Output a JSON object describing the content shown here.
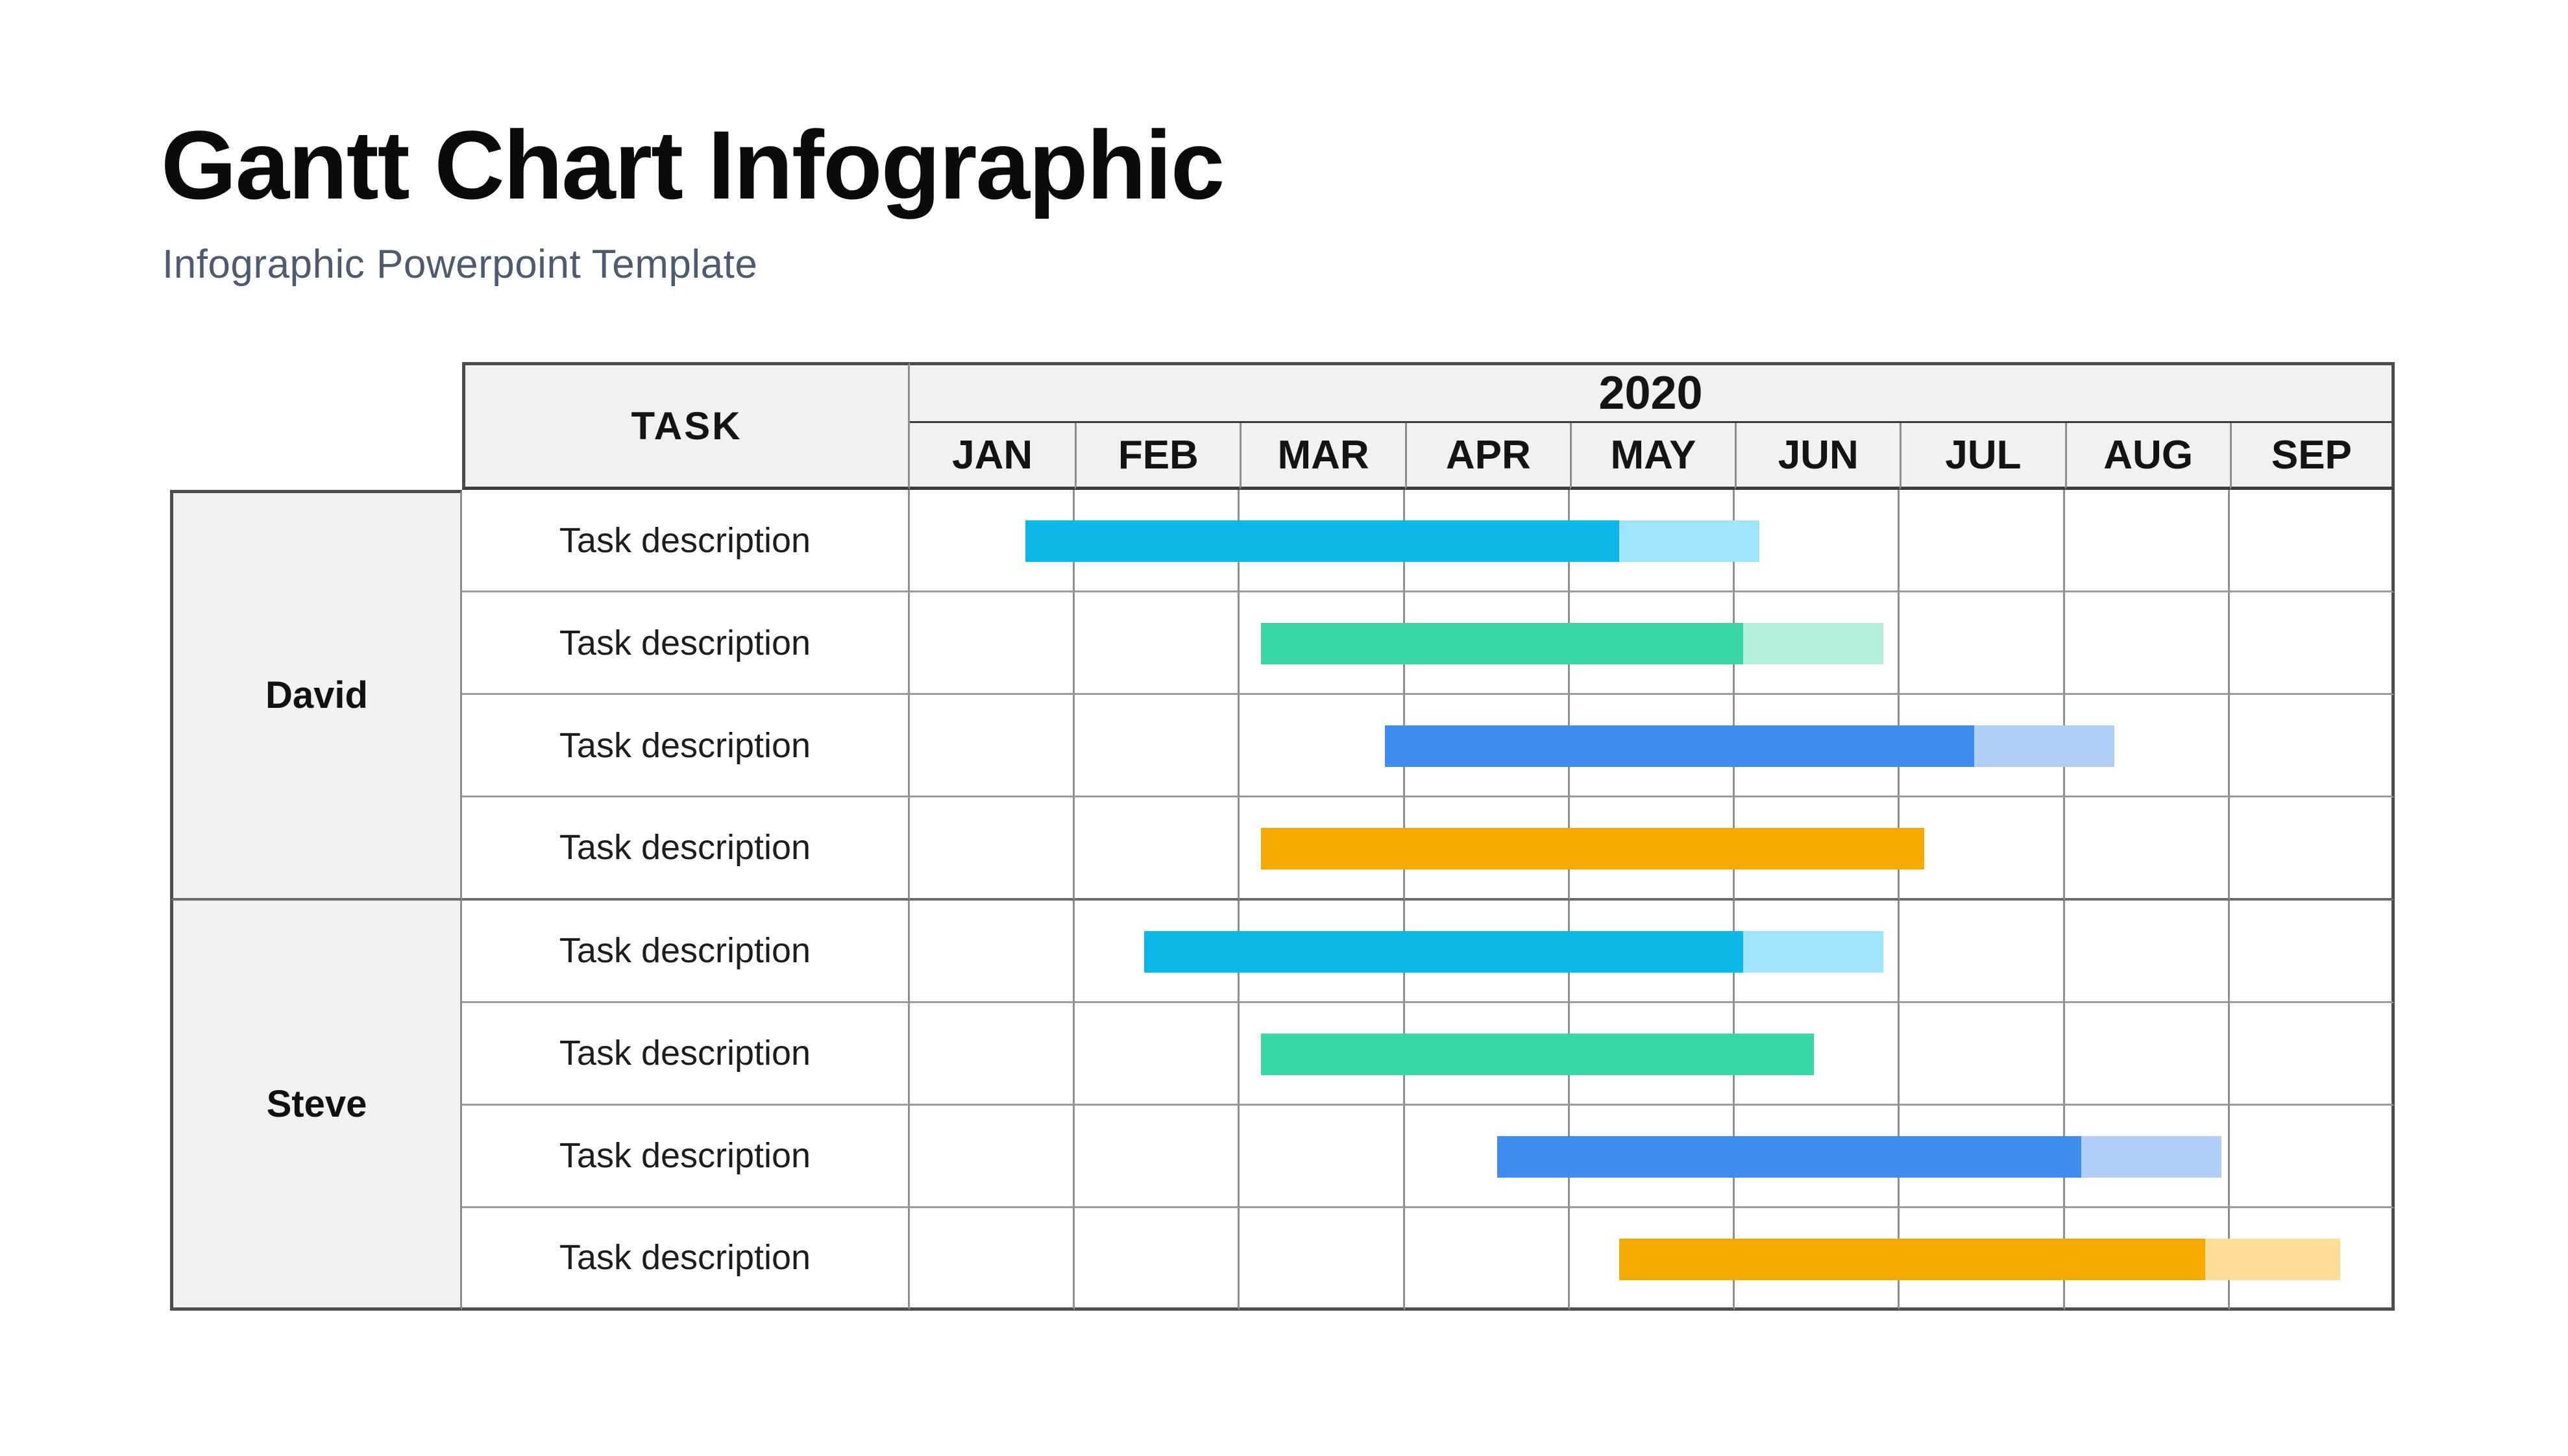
{
  "page": {
    "title": "Gantt Chart Infographic",
    "subtitle": "Infographic Powerpoint Template"
  },
  "table": {
    "task_header": "TASK",
    "year_header": "2020",
    "months": [
      "JAN",
      "FEB",
      "MAR",
      "APR",
      "MAY",
      "JUN",
      "JUL",
      "AUG",
      "SEP"
    ],
    "groups": [
      {
        "name": "David",
        "tasks": [
          {
            "label": "Task description",
            "color": "cyan",
            "start_month": 0.7,
            "solid_end_month": 4.3,
            "faded_end_month": 5.15
          },
          {
            "label": "Task description",
            "color": "green",
            "start_month": 2.13,
            "solid_end_month": 5.05,
            "faded_end_month": 5.9
          },
          {
            "label": "Task description",
            "color": "blue",
            "start_month": 2.88,
            "solid_end_month": 6.45,
            "faded_end_month": 7.3
          },
          {
            "label": "Task description",
            "color": "orange",
            "start_month": 2.13,
            "solid_end_month": 6.15,
            "faded_end_month": null
          }
        ]
      },
      {
        "name": "Steve",
        "tasks": [
          {
            "label": "Task description",
            "color": "cyan",
            "start_month": 1.42,
            "solid_end_month": 5.05,
            "faded_end_month": 5.9
          },
          {
            "label": "Task description",
            "color": "green",
            "start_month": 2.13,
            "solid_end_month": 5.48,
            "faded_end_month": null
          },
          {
            "label": "Task description",
            "color": "blue",
            "start_month": 3.56,
            "solid_end_month": 7.1,
            "faded_end_month": 7.95
          },
          {
            "label": "Task description",
            "color": "orange",
            "start_month": 4.3,
            "solid_end_month": 7.85,
            "faded_end_month": 8.67
          }
        ]
      }
    ]
  },
  "colors": {
    "cyan": "#0bb7e7",
    "cyan_light": "#9fe4fb",
    "green": "#38d7a5",
    "green_light": "#b4eedd",
    "blue": "#3e8cee",
    "blue_light": "#b1cff6",
    "orange": "#f5a903",
    "orange_light": "#fedd97",
    "header_fill": "#f1f1f2",
    "subtitle_text": "#4c5b70",
    "title_text": "#0b0b0b"
  },
  "chart_data": {
    "type": "bar",
    "variant": "gantt",
    "title": "Gantt Chart Infographic",
    "subtitle": "Infographic Powerpoint Template",
    "year": "2020",
    "x_axis": {
      "unit": "month",
      "categories": [
        "JAN",
        "FEB",
        "MAR",
        "APR",
        "MAY",
        "JUN",
        "JUL",
        "AUG",
        "SEP"
      ],
      "range": [
        0,
        9
      ]
    },
    "grid": true,
    "legend": "none",
    "bars": [
      {
        "group": "David",
        "task": "Task description",
        "color_hex": "#0bb7e7",
        "faded_hex": "#9fe4fb",
        "start_month": 0.7,
        "solid_end_month": 4.3,
        "faded_end_month": 5.15
      },
      {
        "group": "David",
        "task": "Task description",
        "color_hex": "#38d7a5",
        "faded_hex": "#b4eedd",
        "start_month": 2.13,
        "solid_end_month": 5.05,
        "faded_end_month": 5.9
      },
      {
        "group": "David",
        "task": "Task description",
        "color_hex": "#3e8cee",
        "faded_hex": "#b1cff6",
        "start_month": 2.88,
        "solid_end_month": 6.45,
        "faded_end_month": 7.3
      },
      {
        "group": "David",
        "task": "Task description",
        "color_hex": "#f5a903",
        "faded_hex": null,
        "start_month": 2.13,
        "solid_end_month": 6.15,
        "faded_end_month": null
      },
      {
        "group": "Steve",
        "task": "Task description",
        "color_hex": "#0bb7e7",
        "faded_hex": "#9fe4fb",
        "start_month": 1.42,
        "solid_end_month": 5.05,
        "faded_end_month": 5.9
      },
      {
        "group": "Steve",
        "task": "Task description",
        "color_hex": "#38d7a5",
        "faded_hex": null,
        "start_month": 2.13,
        "solid_end_month": 5.48,
        "faded_end_month": null
      },
      {
        "group": "Steve",
        "task": "Task description",
        "color_hex": "#3e8cee",
        "faded_hex": "#b1cff6",
        "start_month": 3.56,
        "solid_end_month": 7.1,
        "faded_end_month": 7.95
      },
      {
        "group": "Steve",
        "task": "Task description",
        "color_hex": "#f5a903",
        "faded_hex": "#fedd97",
        "start_month": 4.3,
        "solid_end_month": 7.85,
        "faded_end_month": 8.67
      }
    ]
  }
}
